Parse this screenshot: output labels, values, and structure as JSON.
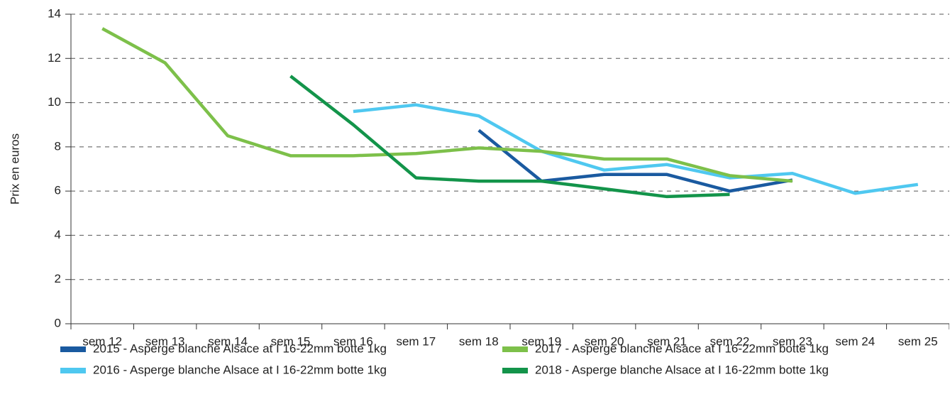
{
  "chart_data": {
    "type": "line",
    "ylabel": "Prix en euros",
    "categories": [
      "sem 12",
      "sem 13",
      "sem 14",
      "sem 15",
      "sem 16",
      "sem 17",
      "sem 18",
      "sem 19",
      "sem 20",
      "sem 21",
      "sem 22",
      "sem 23",
      "sem 24",
      "sem 25"
    ],
    "series": [
      {
        "name": "2015 - Asperge blanche Alsace at I 16-22mm botte 1kg",
        "color": "#1a5aa0",
        "values": [
          null,
          null,
          null,
          null,
          null,
          null,
          8.75,
          6.45,
          6.75,
          6.75,
          6.0,
          6.5,
          null,
          null
        ]
      },
      {
        "name": "2016 - Asperge blanche Alsace at I 16-22mm botte 1kg",
        "color": "#4fc8f0",
        "values": [
          null,
          null,
          null,
          null,
          9.6,
          9.9,
          9.4,
          7.8,
          6.95,
          7.2,
          6.6,
          6.8,
          5.9,
          6.3
        ]
      },
      {
        "name": "2017 - Asperge blanche Alsace at I 16-22mm botte 1kg",
        "color": "#7dc04a",
        "values": [
          13.35,
          11.8,
          8.5,
          7.6,
          7.6,
          7.7,
          7.95,
          7.8,
          7.45,
          7.45,
          6.7,
          6.45,
          null,
          null
        ]
      },
      {
        "name": "2018 - Asperge blanche Alsace at I 16-22mm botte 1kg",
        "color": "#13944a",
        "values": [
          null,
          null,
          null,
          11.2,
          9.0,
          6.6,
          6.45,
          6.45,
          6.1,
          5.75,
          5.85,
          null,
          null,
          null
        ]
      }
    ],
    "ylim": [
      0,
      14
    ],
    "yticks": [
      0,
      2,
      4,
      6,
      8,
      10,
      12,
      14
    ],
    "grid": true,
    "legend": "bottom"
  }
}
